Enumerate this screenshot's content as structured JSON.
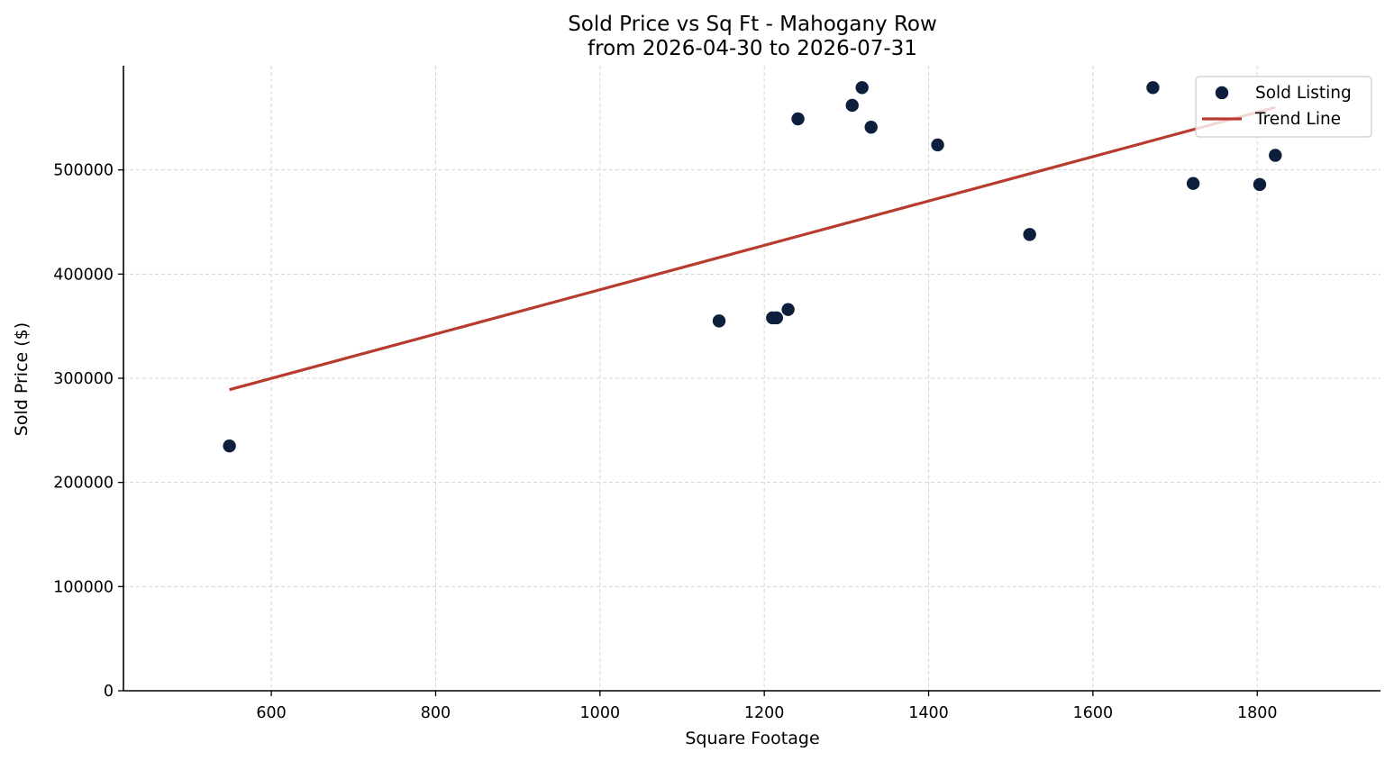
{
  "chart_data": {
    "type": "scatter",
    "title": "Sold Price vs Sq Ft - Mahogany Row",
    "subtitle": "from 2026-04-30 to 2026-07-31",
    "xlabel": "Square Footage",
    "ylabel": "Sold Price ($)",
    "xlim": [
      420,
      1950
    ],
    "ylim": [
      0,
      600000
    ],
    "xticks": [
      600,
      800,
      1000,
      1200,
      1400,
      1600,
      1800
    ],
    "yticks": [
      0,
      100000,
      200000,
      300000,
      400000,
      500000
    ],
    "grid": true,
    "legend_position": "top-right",
    "series": [
      {
        "name": "Sold Listing",
        "kind": "scatter",
        "color": "#0d1f3c",
        "points": [
          {
            "x": 549,
            "y": 235000
          },
          {
            "x": 1145,
            "y": 355000
          },
          {
            "x": 1210,
            "y": 358000
          },
          {
            "x": 1215,
            "y": 358000
          },
          {
            "x": 1229,
            "y": 366000
          },
          {
            "x": 1241,
            "y": 549000
          },
          {
            "x": 1307,
            "y": 562000
          },
          {
            "x": 1319,
            "y": 579000
          },
          {
            "x": 1330,
            "y": 541000
          },
          {
            "x": 1411,
            "y": 524000
          },
          {
            "x": 1523,
            "y": 438000
          },
          {
            "x": 1673,
            "y": 579000
          },
          {
            "x": 1722,
            "y": 487000
          },
          {
            "x": 1803,
            "y": 486000
          },
          {
            "x": 1822,
            "y": 514000
          }
        ]
      },
      {
        "name": "Trend Line",
        "kind": "line",
        "color": "#b83c2e",
        "points": [
          {
            "x": 549,
            "y": 289000
          },
          {
            "x": 1822,
            "y": 560000
          }
        ]
      }
    ]
  }
}
